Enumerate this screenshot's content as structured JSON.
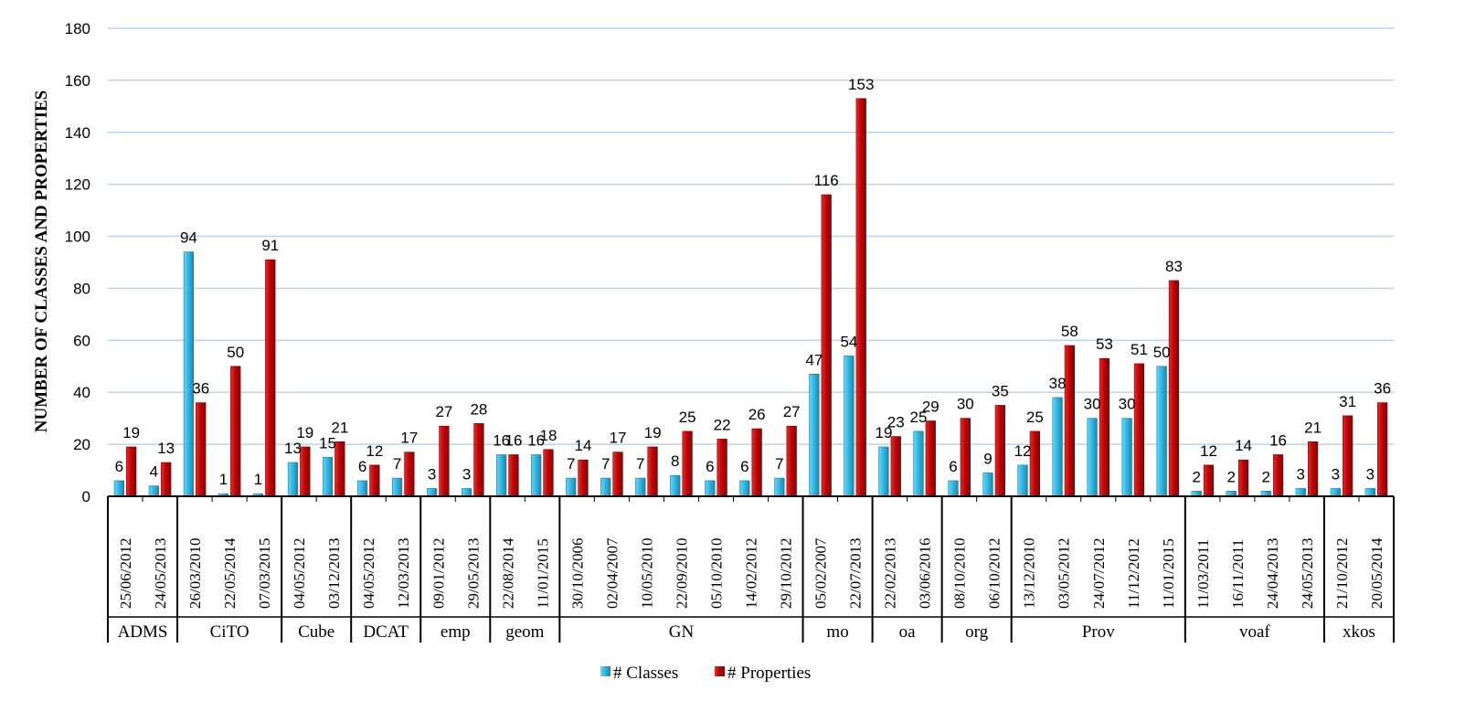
{
  "chart_data": {
    "type": "bar",
    "ylabel": "NUMBER OF CLASSES AND PROPERTIES",
    "ylim": [
      0,
      180
    ],
    "yticks": [
      0,
      20,
      40,
      60,
      80,
      100,
      120,
      140,
      160,
      180
    ],
    "grid": true,
    "legend_position": "bottom",
    "colors": {
      "classes": "#2bb6e3",
      "properties": "#c00000",
      "grid": "#bcd3ea",
      "axis": "#000000"
    },
    "groups": [
      {
        "name": "ADMS",
        "categories": [
          "25/06/2012",
          "24/05/2013"
        ]
      },
      {
        "name": "CiTO",
        "categories": [
          "26/03/2010",
          "22/05/2014",
          "07/03/2015"
        ]
      },
      {
        "name": "Cube",
        "categories": [
          "04/05/2012",
          "03/12/2013"
        ]
      },
      {
        "name": "DCAT",
        "categories": [
          "04/05/2012",
          "12/03/2013"
        ]
      },
      {
        "name": "emp",
        "categories": [
          "09/01/2012",
          "29/05/2013"
        ]
      },
      {
        "name": "geom",
        "categories": [
          "22/08/2014",
          "11/01/2015"
        ]
      },
      {
        "name": "GN",
        "categories": [
          "30/10/2006",
          "02/04/2007",
          "10/05/2010",
          "22/09/2010",
          "05/10/2010",
          "14/02/2012",
          "29/10/2012"
        ]
      },
      {
        "name": "mo",
        "categories": [
          "05/02/2007",
          "22/07/2013"
        ]
      },
      {
        "name": "oa",
        "categories": [
          "22/02/2013",
          "03/06/2016"
        ]
      },
      {
        "name": "org",
        "categories": [
          "08/10/2010",
          "06/10/2012"
        ]
      },
      {
        "name": "Prov",
        "categories": [
          "13/12/2010",
          "03/05/2012",
          "24/07/2012",
          "11/12/2012",
          "11/01/2015"
        ]
      },
      {
        "name": "voaf",
        "categories": [
          "11/03/2011",
          "16/11/2011",
          "24/04/2013",
          "24/05/2013"
        ]
      },
      {
        "name": "xkos",
        "categories": [
          "21/10/2012",
          "20/05/2014"
        ]
      }
    ],
    "series": [
      {
        "name": "# Classes",
        "values": [
          6,
          4,
          94,
          1,
          1,
          13,
          15,
          6,
          7,
          3,
          3,
          16,
          16,
          7,
          7,
          7,
          8,
          6,
          6,
          7,
          47,
          54,
          19,
          25,
          6,
          9,
          12,
          38,
          30,
          30,
          50,
          2,
          2,
          2,
          3,
          3,
          3
        ]
      },
      {
        "name": "# Properties",
        "values": [
          19,
          13,
          36,
          50,
          91,
          19,
          21,
          12,
          17,
          27,
          28,
          16,
          18,
          14,
          17,
          19,
          25,
          22,
          26,
          27,
          116,
          153,
          23,
          29,
          30,
          35,
          25,
          58,
          53,
          51,
          83,
          12,
          14,
          16,
          21,
          31,
          36
        ]
      }
    ]
  }
}
